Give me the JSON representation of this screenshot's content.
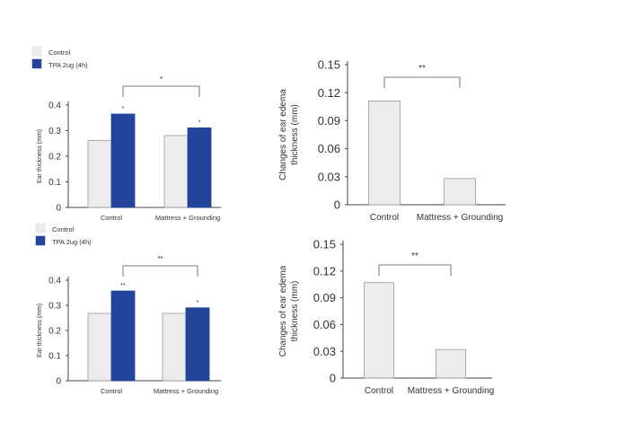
{
  "colors": {
    "control": "#ececec",
    "tpa": "#22449a",
    "bar_stroke": "#9a9a9a",
    "axis": "#444444",
    "bracket": "#555555"
  },
  "chart_data": [
    {
      "type": "bar",
      "legend": {
        "placement": "top-left",
        "entries": [
          "Control",
          "TPA 2ug (4h)"
        ]
      },
      "categories": [
        "Control",
        "Mattress + Grounding"
      ],
      "series": [
        {
          "name": "Control",
          "values": [
            0.262,
            0.281
          ]
        },
        {
          "name": "TPA 2ug (4h)",
          "values": [
            0.365,
            0.311
          ]
        }
      ],
      "ylabel": "Ear thickness (mm)",
      "ylim": [
        0,
        0.4
      ],
      "yticks": [
        "0",
        "0.1",
        "0.2",
        "0.3",
        "0.4"
      ],
      "bar_marks": [
        "",
        "*",
        "",
        "*"
      ],
      "bracket_label": "*"
    },
    {
      "type": "bar",
      "categories": [
        "Control",
        "Mattress + Grounding"
      ],
      "series": [
        {
          "values": [
            0.111,
            0.028
          ]
        }
      ],
      "ylabel_lines": [
        "Changes of ear edema",
        "thickness (mm)"
      ],
      "ylim": [
        0,
        0.15
      ],
      "yticks": [
        "0",
        "0.03",
        "0.06",
        "0.09",
        "0.12",
        "0.15"
      ],
      "bracket_label": "**"
    },
    {
      "type": "bar",
      "legend": {
        "placement": "top-left",
        "entries": [
          "Control",
          "TPA 2ug (4h)"
        ]
      },
      "categories": [
        "Control",
        "Mattress + Grounding"
      ],
      "series": [
        {
          "name": "Control",
          "values": [
            0.268,
            0.268
          ]
        },
        {
          "name": "TPA 2ug (4h)",
          "values": [
            0.357,
            0.29
          ]
        }
      ],
      "ylabel": "Ear thickness (mm)",
      "ylim": [
        0,
        0.4
      ],
      "yticks": [
        "0",
        "0.1",
        "0.2",
        "0.3",
        "0.4"
      ],
      "bar_marks": [
        "",
        "**",
        "",
        "*"
      ],
      "bracket_label": "**"
    },
    {
      "type": "bar",
      "categories": [
        "Control",
        "Mattress + Grounding"
      ],
      "series": [
        {
          "values": [
            0.107,
            0.032
          ]
        }
      ],
      "ylabel_lines": [
        "Changes of ear edema",
        "thickness (mm)"
      ],
      "ylim": [
        0,
        0.15
      ],
      "yticks": [
        "0",
        "0.03",
        "0.06",
        "0.09",
        "0.12",
        "0.15"
      ],
      "bracket_label": "**"
    }
  ]
}
